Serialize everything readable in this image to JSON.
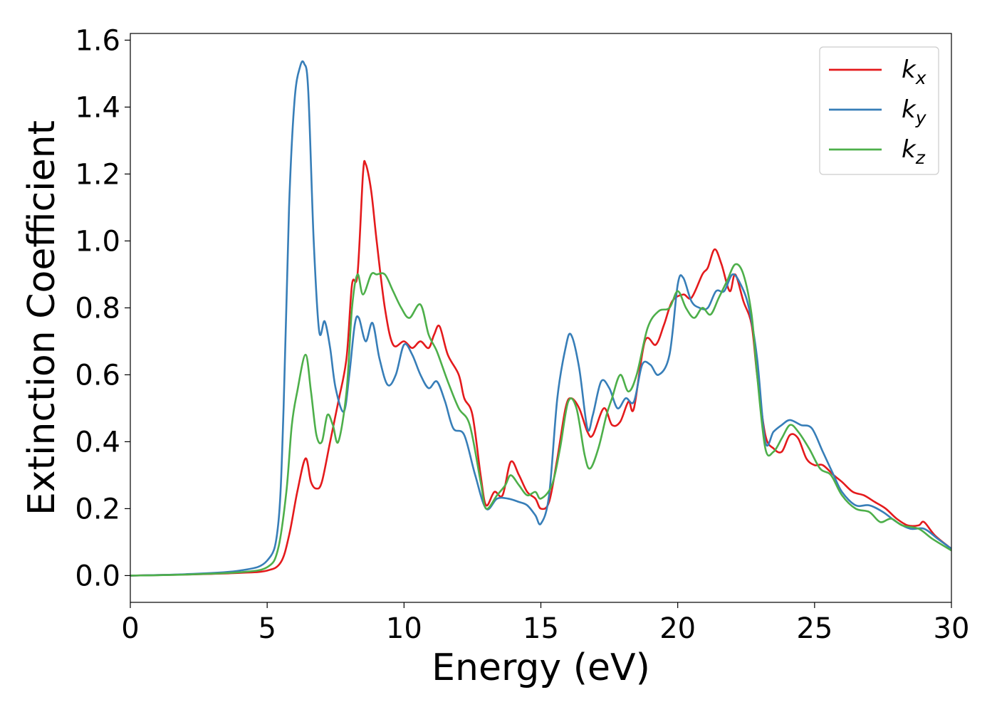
{
  "chart_data": {
    "type": "line",
    "title": "",
    "xlabel": "Energy (eV)",
    "ylabel": "Extinction Coefficient",
    "xlim": [
      0,
      30
    ],
    "ylim": [
      -0.08,
      1.62
    ],
    "xticks": [
      0,
      5,
      10,
      15,
      20,
      25,
      30
    ],
    "xtick_labels": [
      "0",
      "5",
      "10",
      "15",
      "20",
      "25",
      "30"
    ],
    "yticks": [
      0.0,
      0.2,
      0.4,
      0.6,
      0.8,
      1.0,
      1.2,
      1.4,
      1.6
    ],
    "ytick_labels": [
      "0.0",
      "0.2",
      "0.4",
      "0.6",
      "0.8",
      "1.0",
      "1.2",
      "1.4",
      "1.6"
    ],
    "grid": false,
    "legend_position": "top-right",
    "series": [
      {
        "name": "kx",
        "legend_base": "k",
        "legend_sub": "x",
        "color": "#e41a1c",
        "points": [
          [
            0,
            0
          ],
          [
            2,
            0.003
          ],
          [
            4,
            0.008
          ],
          [
            5,
            0.015
          ],
          [
            5.5,
            0.04
          ],
          [
            5.8,
            0.12
          ],
          [
            6.1,
            0.25
          ],
          [
            6.4,
            0.35
          ],
          [
            6.6,
            0.28
          ],
          [
            6.8,
            0.26
          ],
          [
            7.0,
            0.28
          ],
          [
            7.3,
            0.4
          ],
          [
            7.6,
            0.52
          ],
          [
            7.9,
            0.65
          ],
          [
            8.1,
            0.87
          ],
          [
            8.3,
            0.9
          ],
          [
            8.5,
            1.2
          ],
          [
            8.6,
            1.23
          ],
          [
            8.8,
            1.15
          ],
          [
            9.0,
            1.0
          ],
          [
            9.3,
            0.8
          ],
          [
            9.6,
            0.69
          ],
          [
            10.0,
            0.7
          ],
          [
            10.3,
            0.68
          ],
          [
            10.6,
            0.7
          ],
          [
            10.9,
            0.68
          ],
          [
            11.1,
            0.72
          ],
          [
            11.3,
            0.745
          ],
          [
            11.6,
            0.66
          ],
          [
            12.0,
            0.6
          ],
          [
            12.2,
            0.53
          ],
          [
            12.5,
            0.48
          ],
          [
            12.8,
            0.3
          ],
          [
            13.0,
            0.21
          ],
          [
            13.3,
            0.25
          ],
          [
            13.6,
            0.24
          ],
          [
            13.9,
            0.34
          ],
          [
            14.2,
            0.3
          ],
          [
            14.5,
            0.25
          ],
          [
            14.8,
            0.23
          ],
          [
            15.0,
            0.2
          ],
          [
            15.3,
            0.22
          ],
          [
            15.6,
            0.35
          ],
          [
            15.9,
            0.5
          ],
          [
            16.1,
            0.53
          ],
          [
            16.4,
            0.5
          ],
          [
            16.7,
            0.43
          ],
          [
            16.9,
            0.42
          ],
          [
            17.3,
            0.5
          ],
          [
            17.6,
            0.45
          ],
          [
            17.9,
            0.46
          ],
          [
            18.2,
            0.52
          ],
          [
            18.4,
            0.5
          ],
          [
            18.8,
            0.7
          ],
          [
            19.2,
            0.69
          ],
          [
            19.5,
            0.75
          ],
          [
            19.8,
            0.82
          ],
          [
            20.2,
            0.84
          ],
          [
            20.5,
            0.83
          ],
          [
            20.9,
            0.9
          ],
          [
            21.1,
            0.92
          ],
          [
            21.35,
            0.975
          ],
          [
            21.6,
            0.93
          ],
          [
            21.9,
            0.85
          ],
          [
            22.1,
            0.9
          ],
          [
            22.4,
            0.82
          ],
          [
            22.7,
            0.75
          ],
          [
            22.9,
            0.6
          ],
          [
            23.2,
            0.42
          ],
          [
            23.5,
            0.38
          ],
          [
            23.8,
            0.37
          ],
          [
            24.1,
            0.42
          ],
          [
            24.4,
            0.41
          ],
          [
            24.7,
            0.35
          ],
          [
            25.0,
            0.33
          ],
          [
            25.3,
            0.33
          ],
          [
            25.7,
            0.3
          ],
          [
            26.0,
            0.28
          ],
          [
            26.4,
            0.25
          ],
          [
            26.8,
            0.24
          ],
          [
            27.2,
            0.22
          ],
          [
            27.6,
            0.2
          ],
          [
            28.0,
            0.17
          ],
          [
            28.4,
            0.15
          ],
          [
            28.8,
            0.15
          ],
          [
            29.0,
            0.16
          ],
          [
            29.4,
            0.12
          ],
          [
            30,
            0.08
          ]
        ]
      },
      {
        "name": "ky",
        "legend_base": "k",
        "legend_sub": "y",
        "color": "#377eb8",
        "points": [
          [
            0,
            0
          ],
          [
            2,
            0.004
          ],
          [
            4,
            0.015
          ],
          [
            5,
            0.045
          ],
          [
            5.4,
            0.15
          ],
          [
            5.6,
            0.5
          ],
          [
            5.8,
            1.1
          ],
          [
            6.0,
            1.42
          ],
          [
            6.2,
            1.52
          ],
          [
            6.35,
            1.53
          ],
          [
            6.5,
            1.45
          ],
          [
            6.7,
            1.0
          ],
          [
            6.9,
            0.73
          ],
          [
            7.1,
            0.76
          ],
          [
            7.3,
            0.68
          ],
          [
            7.5,
            0.56
          ],
          [
            7.8,
            0.49
          ],
          [
            8.0,
            0.6
          ],
          [
            8.2,
            0.75
          ],
          [
            8.35,
            0.77
          ],
          [
            8.6,
            0.7
          ],
          [
            8.85,
            0.755
          ],
          [
            9.1,
            0.65
          ],
          [
            9.4,
            0.57
          ],
          [
            9.7,
            0.6
          ],
          [
            10.0,
            0.69
          ],
          [
            10.3,
            0.66
          ],
          [
            10.6,
            0.6
          ],
          [
            10.9,
            0.56
          ],
          [
            11.2,
            0.58
          ],
          [
            11.5,
            0.52
          ],
          [
            11.8,
            0.44
          ],
          [
            12.2,
            0.42
          ],
          [
            12.6,
            0.3
          ],
          [
            13.0,
            0.2
          ],
          [
            13.4,
            0.23
          ],
          [
            13.8,
            0.23
          ],
          [
            14.2,
            0.22
          ],
          [
            14.5,
            0.21
          ],
          [
            14.8,
            0.18
          ],
          [
            15.0,
            0.155
          ],
          [
            15.3,
            0.24
          ],
          [
            15.6,
            0.53
          ],
          [
            15.9,
            0.68
          ],
          [
            16.1,
            0.72
          ],
          [
            16.4,
            0.62
          ],
          [
            16.7,
            0.44
          ],
          [
            16.9,
            0.48
          ],
          [
            17.2,
            0.58
          ],
          [
            17.5,
            0.56
          ],
          [
            17.8,
            0.5
          ],
          [
            18.1,
            0.53
          ],
          [
            18.4,
            0.52
          ],
          [
            18.7,
            0.63
          ],
          [
            19.0,
            0.63
          ],
          [
            19.3,
            0.6
          ],
          [
            19.7,
            0.66
          ],
          [
            20.0,
            0.87
          ],
          [
            20.2,
            0.89
          ],
          [
            20.5,
            0.82
          ],
          [
            20.8,
            0.8
          ],
          [
            21.1,
            0.8
          ],
          [
            21.4,
            0.85
          ],
          [
            21.7,
            0.85
          ],
          [
            22.0,
            0.9
          ],
          [
            22.3,
            0.87
          ],
          [
            22.6,
            0.8
          ],
          [
            22.9,
            0.65
          ],
          [
            23.2,
            0.4
          ],
          [
            23.5,
            0.43
          ],
          [
            23.8,
            0.45
          ],
          [
            24.1,
            0.465
          ],
          [
            24.5,
            0.45
          ],
          [
            24.9,
            0.44
          ],
          [
            25.3,
            0.37
          ],
          [
            25.7,
            0.3
          ],
          [
            26.0,
            0.25
          ],
          [
            26.5,
            0.21
          ],
          [
            27.0,
            0.21
          ],
          [
            27.5,
            0.19
          ],
          [
            28.0,
            0.16
          ],
          [
            28.5,
            0.14
          ],
          [
            29.0,
            0.14
          ],
          [
            29.5,
            0.11
          ],
          [
            30,
            0.08
          ]
        ]
      },
      {
        "name": "kz",
        "legend_base": "k",
        "legend_sub": "z",
        "color": "#4daf4a",
        "points": [
          [
            0,
            0
          ],
          [
            2,
            0.003
          ],
          [
            4,
            0.01
          ],
          [
            5,
            0.025
          ],
          [
            5.4,
            0.08
          ],
          [
            5.7,
            0.25
          ],
          [
            5.9,
            0.45
          ],
          [
            6.1,
            0.55
          ],
          [
            6.4,
            0.66
          ],
          [
            6.6,
            0.55
          ],
          [
            6.8,
            0.42
          ],
          [
            7.0,
            0.4
          ],
          [
            7.2,
            0.48
          ],
          [
            7.4,
            0.45
          ],
          [
            7.6,
            0.4
          ],
          [
            7.9,
            0.55
          ],
          [
            8.1,
            0.8
          ],
          [
            8.3,
            0.9
          ],
          [
            8.5,
            0.84
          ],
          [
            8.8,
            0.9
          ],
          [
            9.0,
            0.9
          ],
          [
            9.3,
            0.9
          ],
          [
            9.6,
            0.85
          ],
          [
            9.9,
            0.8
          ],
          [
            10.2,
            0.77
          ],
          [
            10.6,
            0.81
          ],
          [
            10.9,
            0.72
          ],
          [
            11.2,
            0.67
          ],
          [
            11.6,
            0.58
          ],
          [
            12.0,
            0.5
          ],
          [
            12.4,
            0.45
          ],
          [
            12.8,
            0.28
          ],
          [
            13.0,
            0.2
          ],
          [
            13.4,
            0.24
          ],
          [
            13.7,
            0.27
          ],
          [
            13.9,
            0.3
          ],
          [
            14.2,
            0.27
          ],
          [
            14.5,
            0.24
          ],
          [
            14.8,
            0.25
          ],
          [
            15.0,
            0.23
          ],
          [
            15.4,
            0.27
          ],
          [
            15.7,
            0.38
          ],
          [
            16.0,
            0.52
          ],
          [
            16.3,
            0.5
          ],
          [
            16.6,
            0.36
          ],
          [
            16.8,
            0.32
          ],
          [
            17.1,
            0.38
          ],
          [
            17.4,
            0.48
          ],
          [
            17.6,
            0.53
          ],
          [
            17.9,
            0.6
          ],
          [
            18.2,
            0.55
          ],
          [
            18.5,
            0.6
          ],
          [
            18.9,
            0.74
          ],
          [
            19.3,
            0.79
          ],
          [
            19.7,
            0.8
          ],
          [
            20.0,
            0.85
          ],
          [
            20.3,
            0.8
          ],
          [
            20.6,
            0.77
          ],
          [
            20.9,
            0.8
          ],
          [
            21.2,
            0.78
          ],
          [
            21.5,
            0.83
          ],
          [
            21.8,
            0.88
          ],
          [
            22.1,
            0.93
          ],
          [
            22.4,
            0.9
          ],
          [
            22.7,
            0.78
          ],
          [
            22.9,
            0.6
          ],
          [
            23.2,
            0.38
          ],
          [
            23.5,
            0.37
          ],
          [
            23.8,
            0.41
          ],
          [
            24.1,
            0.45
          ],
          [
            24.4,
            0.43
          ],
          [
            24.8,
            0.38
          ],
          [
            25.2,
            0.32
          ],
          [
            25.6,
            0.3
          ],
          [
            26.0,
            0.24
          ],
          [
            26.5,
            0.2
          ],
          [
            27.0,
            0.19
          ],
          [
            27.4,
            0.16
          ],
          [
            27.8,
            0.17
          ],
          [
            28.2,
            0.15
          ],
          [
            28.8,
            0.14
          ],
          [
            29.3,
            0.11
          ],
          [
            30,
            0.075
          ]
        ]
      }
    ]
  }
}
